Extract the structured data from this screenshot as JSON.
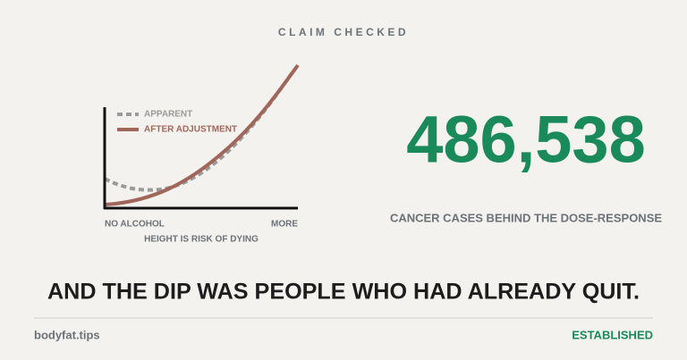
{
  "header": {
    "kicker": "CLAIM CHECKED"
  },
  "illustration": {
    "legend": [
      "APPARENT",
      "AFTER ADJUSTMENT"
    ],
    "x_labels": [
      "NO ALCOHOL",
      "MORE"
    ],
    "caption": "HEIGHT IS RISK OF DYING"
  },
  "stat": {
    "value": "486,538",
    "label": "CANCER CASES BEHIND THE DOSE-RESPONSE"
  },
  "headline": "AND THE DIP WAS PEOPLE WHO HAD ALREADY QUIT.",
  "footer": {
    "site": "bodyfat.tips",
    "verdict": "ESTABLISHED"
  }
}
